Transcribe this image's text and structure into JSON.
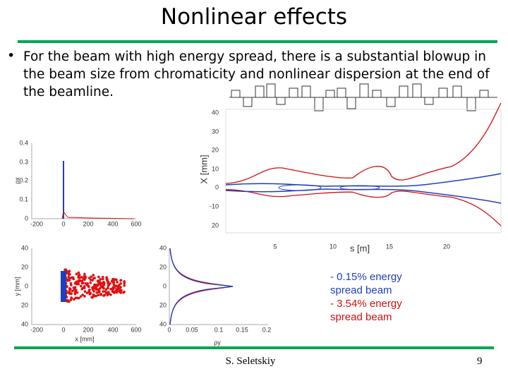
{
  "title": "Nonlinear effects",
  "bullet": "For the beam with high energy spread, there is a substantial blowup in the beam size from chromaticity  and nonlinear dispersion at the end of the beamline.",
  "plots": {
    "top_right": {
      "ylabel": "X [mm]",
      "xlabel": "s [m]",
      "yticks": [
        "40",
        "30",
        "20",
        "10",
        "0",
        "-10",
        "20"
      ],
      "xticks": [
        "5",
        "10",
        "15",
        "20"
      ]
    },
    "top_left": {
      "ylabel": "ρx",
      "yticks": [
        "0.4",
        "0.3",
        "0.2",
        "0.1",
        "0"
      ],
      "xticks": [
        "-200",
        "0",
        "200",
        "400",
        "600"
      ]
    },
    "bottom_left": {
      "ylabel": "y [mm]",
      "xlabel": "x [mm]",
      "yticks": [
        "40",
        "20",
        "0",
        "20",
        "40"
      ],
      "xticks": [
        "-200",
        "0",
        "200",
        "400",
        "600"
      ]
    },
    "bottom_mid": {
      "xlabel": "ρy",
      "yticks": [
        "40",
        "20",
        "0",
        "20",
        "40"
      ],
      "xticks": [
        "0",
        "0.05",
        "0.1",
        "0.15",
        "0.2"
      ]
    }
  },
  "legend": [
    "- 0.15% energy spread beam",
    "- 3.54% energy spread beam"
  ],
  "footer": {
    "author": "S. Seletskiy",
    "page": "9"
  }
}
